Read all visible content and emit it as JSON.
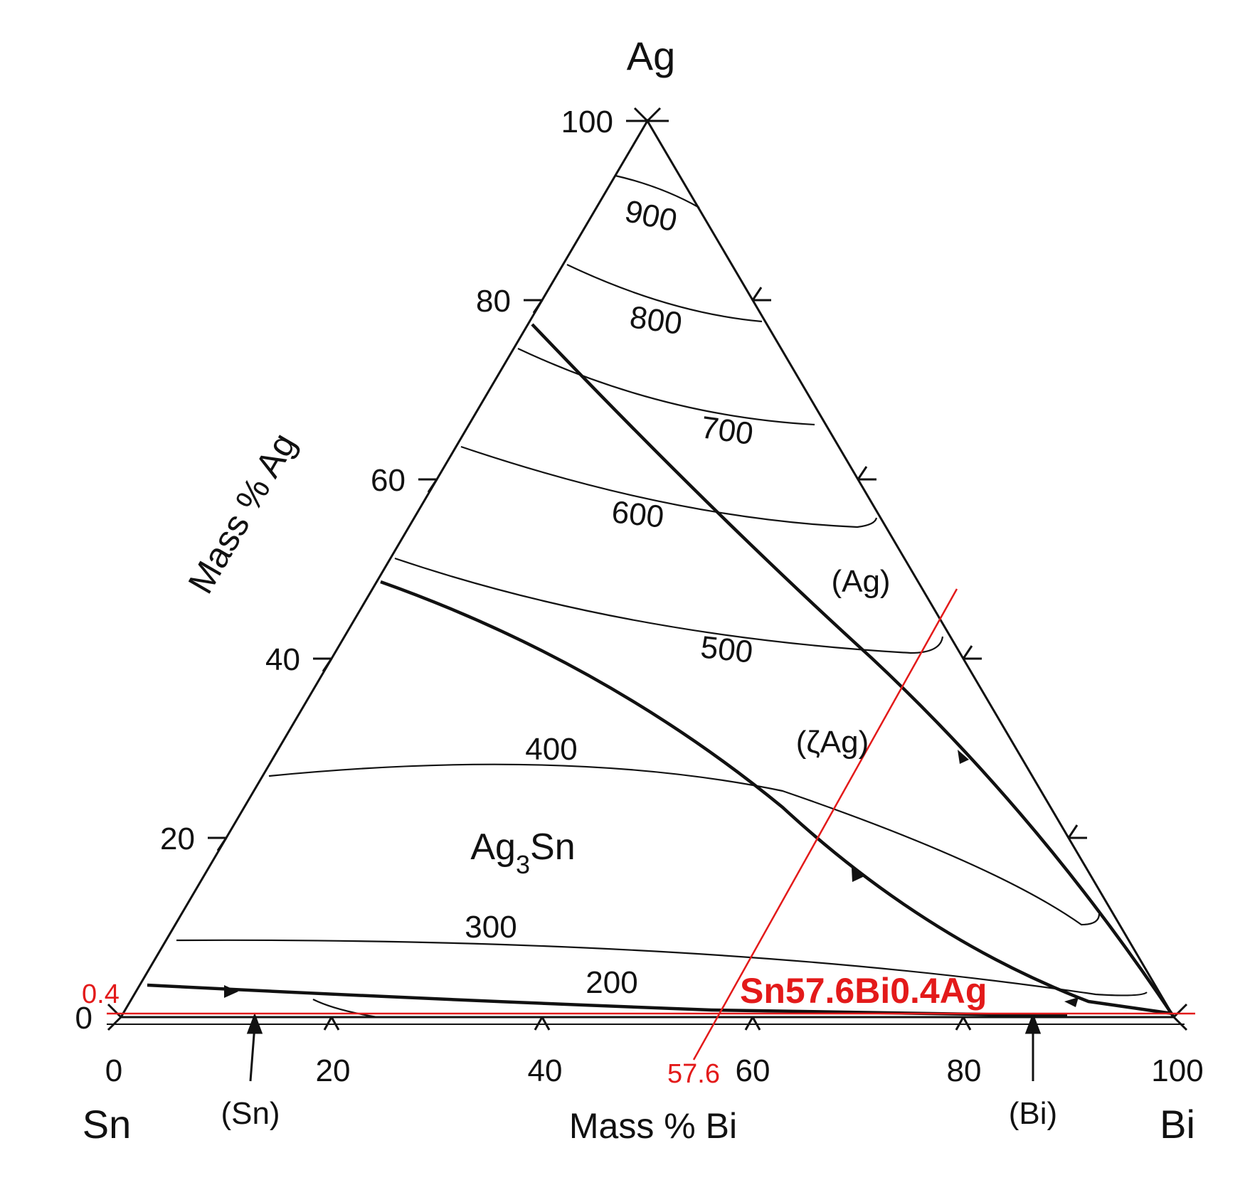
{
  "corners": {
    "top": "Ag",
    "left": "Sn",
    "right": "Bi"
  },
  "axes": {
    "bottom_title": "Mass % Bi",
    "left_title": "Mass % Ag",
    "bottom_ticks": [
      "0",
      "20",
      "40",
      "60",
      "80",
      "100"
    ],
    "left_ticks": [
      "0",
      "20",
      "40",
      "60",
      "80",
      "100"
    ]
  },
  "isotherms": [
    "900",
    "800",
    "700",
    "600",
    "500",
    "400",
    "300",
    "200"
  ],
  "phase_regions": {
    "ag": "(Ag)",
    "zeta_ag": "(ζAg)",
    "ag3sn_main": "Ag",
    "ag3sn_sub": "3",
    "ag3sn_tail": "Sn",
    "sn": "(Sn)",
    "bi": "(Bi)"
  },
  "annotation": {
    "composition": "Sn57.6Bi0.4Ag",
    "bi_value": "57.6",
    "ag_value": "0.4"
  },
  "colors": {
    "ink": "#111111",
    "highlight": "#e31a1a"
  }
}
